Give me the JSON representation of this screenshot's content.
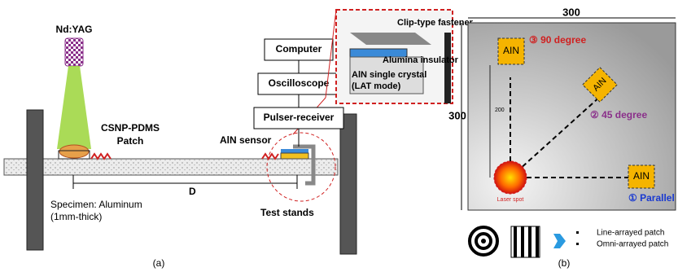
{
  "panel_a": {
    "laser": "Nd:YAG",
    "patch_label": [
      "CSNP-PDMS",
      "Patch"
    ],
    "sensor": "AlN sensor",
    "specimen": [
      "Specimen: Aluminum",
      "(1mm-thick)"
    ],
    "distance": "D",
    "stands": "Test stands",
    "instruments": [
      "Computer",
      "Oscilloscope",
      "Pulser-receiver"
    ],
    "inset": [
      "Clip-type fastener",
      "Alumina insulator",
      "AlN single crystal",
      "(LAT mode)"
    ],
    "caption": "(a)"
  },
  "panel_b": {
    "width": "300",
    "height": "300",
    "spacing": "200",
    "sensors": [
      {
        "label": "AIN",
        "angle": "③ 90 degree"
      },
      {
        "label": "AIN",
        "angle": "② 45 degree"
      },
      {
        "label": "AIN",
        "angle": "① Parallel"
      }
    ],
    "laser_spot": "Laser spot",
    "legend": [
      "Line-arrayed patch",
      "Omni-arrayed patch"
    ],
    "caption": "(b)"
  }
}
